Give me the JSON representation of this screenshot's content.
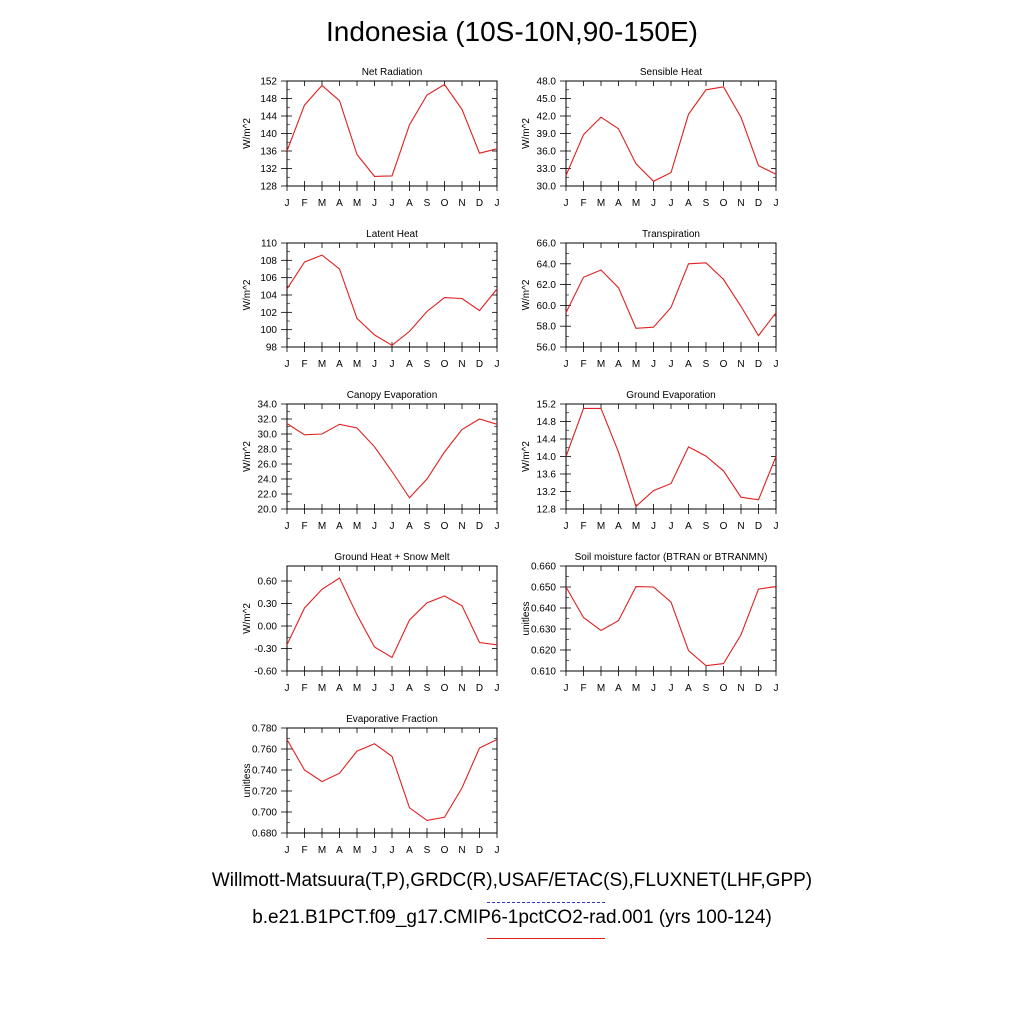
{
  "title": "Indonesia (10S-10N,90-150E)",
  "months": [
    "J",
    "F",
    "M",
    "A",
    "M",
    "J",
    "J",
    "A",
    "S",
    "O",
    "N",
    "D",
    "J"
  ],
  "legend": {
    "observations": "Willmott-Matsuura(T,P),GRDC(R),USAF/ETAC(S),FLUXNET(LHF,GPP)",
    "model": "b.e21.B1PCT.f09_g17.CMIP6-1pctCO2-rad.001 (yrs 100-124)",
    "observations_color": "#3333cc",
    "model_color": "#e02020"
  },
  "chart_data": [
    {
      "type": "line",
      "title": "Net Radiation",
      "xlabel": "",
      "ylabel": "W/m^2",
      "ylim": [
        128,
        152
      ],
      "yticks": [
        "128",
        "132",
        "136",
        "140",
        "144",
        "148",
        "152"
      ],
      "tick_values": [
        128,
        132,
        136,
        140,
        144,
        148,
        152
      ],
      "series": [
        {
          "values": [
            136,
            146.5,
            151,
            147.5,
            135.2,
            130.2,
            130.3,
            142,
            148.8,
            151.2,
            145.5,
            135.5,
            136.5
          ]
        }
      ]
    },
    {
      "type": "line",
      "title": "Sensible Heat",
      "xlabel": "",
      "ylabel": "W/m^2",
      "ylim": [
        30,
        48
      ],
      "yticks": [
        "30.0",
        "33.0",
        "36.0",
        "39.0",
        "42.0",
        "45.0",
        "48.0"
      ],
      "tick_values": [
        30,
        33,
        36,
        39,
        42,
        45,
        48
      ],
      "series": [
        {
          "values": [
            31.8,
            38.8,
            41.8,
            39.8,
            33.8,
            30.8,
            32.3,
            42.3,
            46.5,
            47,
            41.8,
            33.5,
            32
          ]
        }
      ]
    },
    {
      "type": "line",
      "title": "Latent Heat",
      "xlabel": "",
      "ylabel": "W/m^2",
      "ylim": [
        98,
        110
      ],
      "yticks": [
        "98",
        "100",
        "102",
        "104",
        "106",
        "108",
        "110"
      ],
      "tick_values": [
        98,
        100,
        102,
        104,
        106,
        108,
        110
      ],
      "series": [
        {
          "values": [
            104.7,
            107.8,
            108.6,
            107,
            101.3,
            99.4,
            98.2,
            99.8,
            102.1,
            103.7,
            103.6,
            102.2,
            104.7
          ]
        }
      ]
    },
    {
      "type": "line",
      "title": "Transpiration",
      "xlabel": "",
      "ylabel": "W/m^2",
      "ylim": [
        56,
        66
      ],
      "yticks": [
        "56.0",
        "58.0",
        "60.0",
        "62.0",
        "64.0",
        "66.0"
      ],
      "tick_values": [
        56,
        58,
        60,
        62,
        64,
        66
      ],
      "series": [
        {
          "values": [
            59.3,
            62.7,
            63.4,
            61.7,
            57.8,
            57.9,
            59.8,
            64,
            64.1,
            62.5,
            59.9,
            57.1,
            59.3
          ]
        }
      ]
    },
    {
      "type": "line",
      "title": "Canopy Evaporation",
      "xlabel": "",
      "ylabel": "W/m^2",
      "ylim": [
        20,
        34
      ],
      "yticks": [
        "20.0",
        "22.0",
        "24.0",
        "26.0",
        "28.0",
        "30.0",
        "32.0",
        "34.0"
      ],
      "tick_values": [
        20,
        22,
        24,
        26,
        28,
        30,
        32,
        34
      ],
      "series": [
        {
          "values": [
            31.4,
            29.9,
            30,
            31.3,
            30.8,
            28.3,
            25,
            21.5,
            24,
            27.6,
            30.6,
            32,
            31.3
          ]
        }
      ]
    },
    {
      "type": "line",
      "title": "Ground Evaporation",
      "xlabel": "",
      "ylabel": "W/m^2",
      "ylim": [
        12.8,
        15.2
      ],
      "yticks": [
        "12.8",
        "13.2",
        "13.6",
        "14.0",
        "14.4",
        "14.8",
        "15.2"
      ],
      "tick_values": [
        12.8,
        13.2,
        13.6,
        14.0,
        14.4,
        14.8,
        15.2
      ],
      "series": [
        {
          "values": [
            14,
            15.1,
            15.1,
            14.1,
            12.86,
            13.22,
            13.38,
            14.22,
            14.01,
            13.67,
            13.07,
            13.01,
            14
          ]
        }
      ]
    },
    {
      "type": "line",
      "title": "Ground Heat + Snow Melt",
      "xlabel": "",
      "ylabel": "W/m^2",
      "ylim": [
        -0.6,
        0.8
      ],
      "yticks": [
        "-0.60",
        "-0.30",
        "0.00",
        "0.30",
        "0.60"
      ],
      "tick_values": [
        -0.6,
        -0.3,
        0,
        0.3,
        0.6
      ],
      "series": [
        {
          "values": [
            -0.25,
            0.24,
            0.49,
            0.64,
            0.15,
            -0.28,
            -0.42,
            0.08,
            0.31,
            0.4,
            0.27,
            -0.22,
            -0.25
          ]
        }
      ]
    },
    {
      "type": "line",
      "title": "Soil moisture factor (BTRAN or BTRANMN)",
      "xlabel": "",
      "ylabel": "unitless",
      "ylim": [
        0.61,
        0.66
      ],
      "yticks": [
        "0.610",
        "0.620",
        "0.630",
        "0.640",
        "0.650",
        "0.660"
      ],
      "tick_values": [
        0.61,
        0.62,
        0.63,
        0.64,
        0.65,
        0.66
      ],
      "series": [
        {
          "values": [
            0.65,
            0.6355,
            0.6293,
            0.634,
            0.6502,
            0.65,
            0.6428,
            0.6197,
            0.6125,
            0.6135,
            0.6273,
            0.649,
            0.6502
          ]
        }
      ]
    },
    {
      "type": "line",
      "title": "Evaporative Fraction",
      "xlabel": "",
      "ylabel": "unitless",
      "ylim": [
        0.68,
        0.78
      ],
      "yticks": [
        "0.680",
        "0.700",
        "0.720",
        "0.740",
        "0.760",
        "0.780"
      ],
      "tick_values": [
        0.68,
        0.7,
        0.72,
        0.74,
        0.76,
        0.78
      ],
      "series": [
        {
          "values": [
            0.769,
            0.74,
            0.729,
            0.737,
            0.758,
            0.765,
            0.753,
            0.704,
            0.692,
            0.695,
            0.723,
            0.761,
            0.769
          ]
        }
      ]
    }
  ]
}
